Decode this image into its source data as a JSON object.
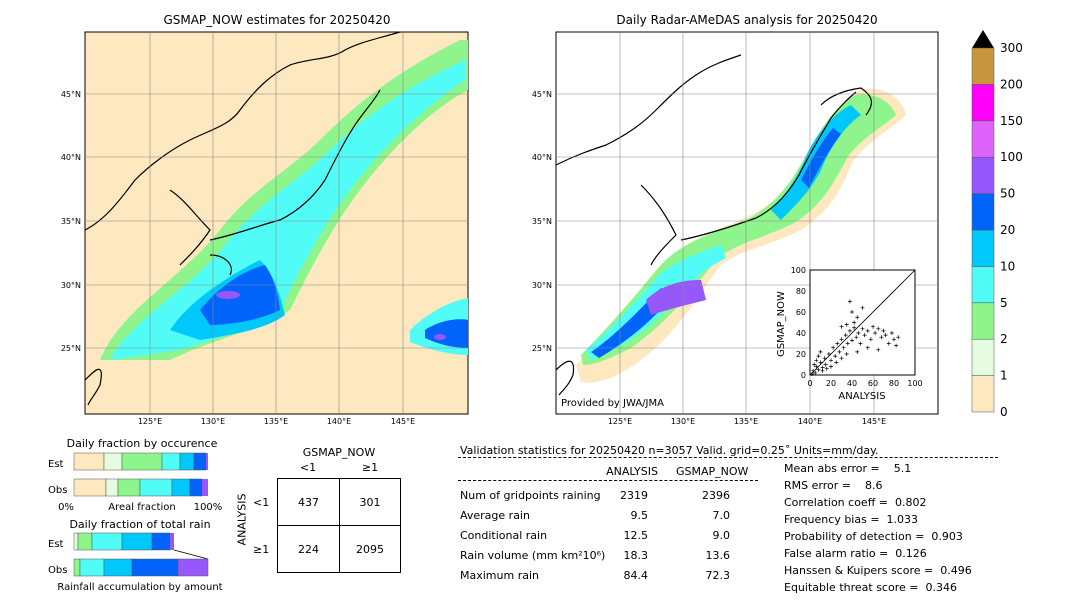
{
  "left_map": {
    "title": "GSMAP_NOW estimates for 20250420",
    "lat_labels": [
      "45°N",
      "40°N",
      "35°N",
      "30°N",
      "25°N"
    ],
    "lon_labels": [
      "125°E",
      "130°E",
      "135°E",
      "140°E",
      "145°E"
    ]
  },
  "right_map": {
    "title": "Daily Radar-AMeDAS analysis for 20250420",
    "lat_labels": [
      "45°N",
      "40°N",
      "35°N",
      "30°N",
      "25°N"
    ],
    "lon_labels": [
      "125°E",
      "130°E",
      "135°E",
      "140°E",
      "145°E"
    ],
    "credit": "Provided by JWA/JMA"
  },
  "colorbar": {
    "levels": [
      "0",
      "1",
      "2",
      "5",
      "10",
      "20",
      "50",
      "100",
      "150",
      "200",
      "300"
    ],
    "colors": [
      "#fde8c0",
      "#e6fce0",
      "#8ef58c",
      "#52fcf6",
      "#00c8fa",
      "#0064fa",
      "#9658fa",
      "#dc62fa",
      "#ff00f8",
      "#c8963e"
    ],
    "extend_color": "#000000"
  },
  "scatter": {
    "xlabel": "ANALYSIS",
    "ylabel": "GSMAP_NOW",
    "ticks": [
      "0",
      "20",
      "40",
      "60",
      "80",
      "100"
    ],
    "xlim": [
      0,
      100
    ],
    "ylim": [
      0,
      100
    ]
  },
  "fraction_occurrence": {
    "title": "Daily fraction by occurence",
    "rows": [
      "Est",
      "Obs"
    ],
    "left_label": "0%",
    "mid_label": "Areal fraction",
    "right_label": "100%"
  },
  "fraction_total": {
    "title": "Daily fraction of total rain",
    "rows": [
      "Est",
      "Obs"
    ],
    "bottom_label": "Rainfall accumulation by amount"
  },
  "contingency": {
    "title": "GSMAP_NOW",
    "col_labels": [
      "<1",
      "≥1"
    ],
    "row_labels": [
      "<1",
      "≥1"
    ],
    "row_axis": "ANALYSIS",
    "cells": [
      [
        "437",
        "301"
      ],
      [
        "224",
        "2095"
      ]
    ]
  },
  "validation": {
    "header": "Validation statistics for 20250420  n=3057 Valid. grid=0.25˚ Units=mm/day.",
    "col_analysis": "ANALYSIS",
    "col_gsmap": "GSMAP_NOW",
    "rows": [
      {
        "label": "Num of gridpoints raining",
        "analysis": "2319",
        "gsmap": "2396"
      },
      {
        "label": "Average rain",
        "analysis": "9.5",
        "gsmap": "7.0"
      },
      {
        "label": "Conditional rain",
        "analysis": "12.5",
        "gsmap": "9.0"
      },
      {
        "label": "Rain volume (mm km²10⁶)",
        "analysis": "18.3",
        "gsmap": "13.6"
      },
      {
        "label": "Maximum rain",
        "analysis": "84.4",
        "gsmap": "72.3"
      }
    ],
    "scores": [
      "Mean abs error =    5.1",
      "RMS error =    8.6",
      "Correlation coeff =  0.802",
      "Frequency bias =  1.033",
      "Probability of detection =  0.903",
      "False alarm ratio =  0.126",
      "Hanssen & Kuipers score =  0.496",
      "Equitable threat score =  0.346"
    ]
  },
  "chart_data": {
    "type": "scatter",
    "xlabel": "ANALYSIS",
    "ylabel": "GSMAP_NOW",
    "xlim": [
      0,
      100
    ],
    "ylim": [
      0,
      100
    ],
    "points": [
      [
        2,
        1
      ],
      [
        3,
        4
      ],
      [
        5,
        2
      ],
      [
        6,
        8
      ],
      [
        8,
        5
      ],
      [
        10,
        12
      ],
      [
        12,
        7
      ],
      [
        14,
        16
      ],
      [
        15,
        10
      ],
      [
        18,
        20
      ],
      [
        20,
        14
      ],
      [
        22,
        26
      ],
      [
        24,
        18
      ],
      [
        26,
        30
      ],
      [
        28,
        22
      ],
      [
        30,
        34
      ],
      [
        32,
        26
      ],
      [
        34,
        38
      ],
      [
        36,
        30
      ],
      [
        38,
        42
      ],
      [
        40,
        33
      ],
      [
        42,
        45
      ],
      [
        44,
        36
      ],
      [
        46,
        40
      ],
      [
        48,
        30
      ],
      [
        50,
        44
      ],
      [
        52,
        38
      ],
      [
        55,
        42
      ],
      [
        58,
        34
      ],
      [
        60,
        46
      ],
      [
        62,
        40
      ],
      [
        65,
        44
      ],
      [
        68,
        36
      ],
      [
        70,
        42
      ],
      [
        72,
        38
      ],
      [
        75,
        30
      ],
      [
        78,
        40
      ],
      [
        80,
        34
      ],
      [
        82,
        28
      ],
      [
        84,
        36
      ],
      [
        4,
        10
      ],
      [
        6,
        14
      ],
      [
        8,
        18
      ],
      [
        10,
        22
      ],
      [
        12,
        4
      ],
      [
        16,
        6
      ],
      [
        20,
        8
      ],
      [
        25,
        12
      ],
      [
        30,
        16
      ],
      [
        35,
        20
      ],
      [
        45,
        22
      ],
      [
        55,
        26
      ],
      [
        65,
        24
      ],
      [
        40,
        60
      ],
      [
        45,
        55
      ],
      [
        38,
        70
      ],
      [
        50,
        64
      ],
      [
        42,
        50
      ],
      [
        35,
        48
      ],
      [
        30,
        46
      ]
    ]
  }
}
